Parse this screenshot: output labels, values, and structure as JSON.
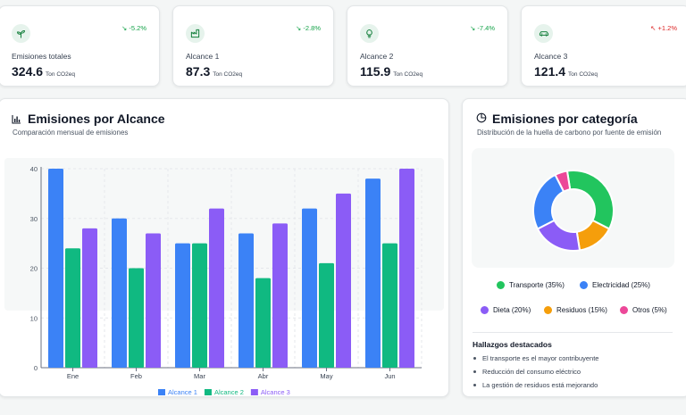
{
  "kpis": [
    {
      "label": "Emisiones totales",
      "value": "324.6",
      "unit": "Ton CO2eq",
      "trend": "-5.2%",
      "trend_dir": "down",
      "icon": "sprout-icon"
    },
    {
      "label": "Alcance 1",
      "value": "87.3",
      "unit": "Ton CO2eq",
      "trend": "-2.8%",
      "trend_dir": "down",
      "icon": "factory-icon"
    },
    {
      "label": "Alcance 2",
      "value": "115.9",
      "unit": "Ton CO2eq",
      "trend": "-7.4%",
      "trend_dir": "down",
      "icon": "lightbulb-icon"
    },
    {
      "label": "Alcance 3",
      "value": "121.4",
      "unit": "Ton CO2eq",
      "trend": "+1.2%",
      "trend_dir": "up",
      "icon": "car-icon"
    }
  ],
  "scope_panel": {
    "title": "Emisiones por Alcance",
    "subtitle": "Comparación mensual de emisiones",
    "icon": "bar-chart-icon"
  },
  "category_panel": {
    "title": "Emisiones por categoría",
    "subtitle": "Distribución de la huella de carbono por fuente de emisión",
    "icon": "pie-chart-icon",
    "findings_title": "Hallazgos destacados",
    "findings": [
      "El transporte es el mayor contribuyente",
      "Reducción del consumo eléctrico",
      "La gestión de residuos está mejorando"
    ]
  },
  "chart_data": [
    {
      "type": "bar",
      "categories": [
        "Ene",
        "Feb",
        "Mar",
        "Abr",
        "May",
        "Jun"
      ],
      "series": [
        {
          "name": "Alcance 1",
          "values": [
            40,
            30,
            25,
            27,
            32,
            38
          ],
          "color": "#3b82f6"
        },
        {
          "name": "Alcance 2",
          "values": [
            24,
            20,
            25,
            18,
            21,
            25
          ],
          "color": "#10b981"
        },
        {
          "name": "Alcance 3",
          "values": [
            28,
            27,
            32,
            29,
            35,
            40
          ],
          "color": "#8b5cf6"
        }
      ],
      "yticks": [
        0,
        10,
        20,
        30,
        40
      ],
      "ylim": [
        0,
        40
      ],
      "grid": true,
      "legend": "bottom"
    },
    {
      "type": "pie",
      "donut": true,
      "slices": [
        {
          "label": "Transporte (35%)",
          "value": 35,
          "color": "#22c55e"
        },
        {
          "label": "Residuos (15%)",
          "value": 15,
          "color": "#f59e0b"
        },
        {
          "label": "Dieta (20%)",
          "value": 20,
          "color": "#8b5cf6"
        },
        {
          "label": "Electricidad (25%)",
          "value": 25,
          "color": "#3b82f6"
        },
        {
          "label": "Otros (5%)",
          "value": 5,
          "color": "#ec4899"
        }
      ],
      "legend_order": [
        "Transporte (35%)",
        "Electricidad (25%)",
        "Dieta (20%)",
        "Residuos (15%)",
        "Otros (5%)"
      ]
    }
  ]
}
